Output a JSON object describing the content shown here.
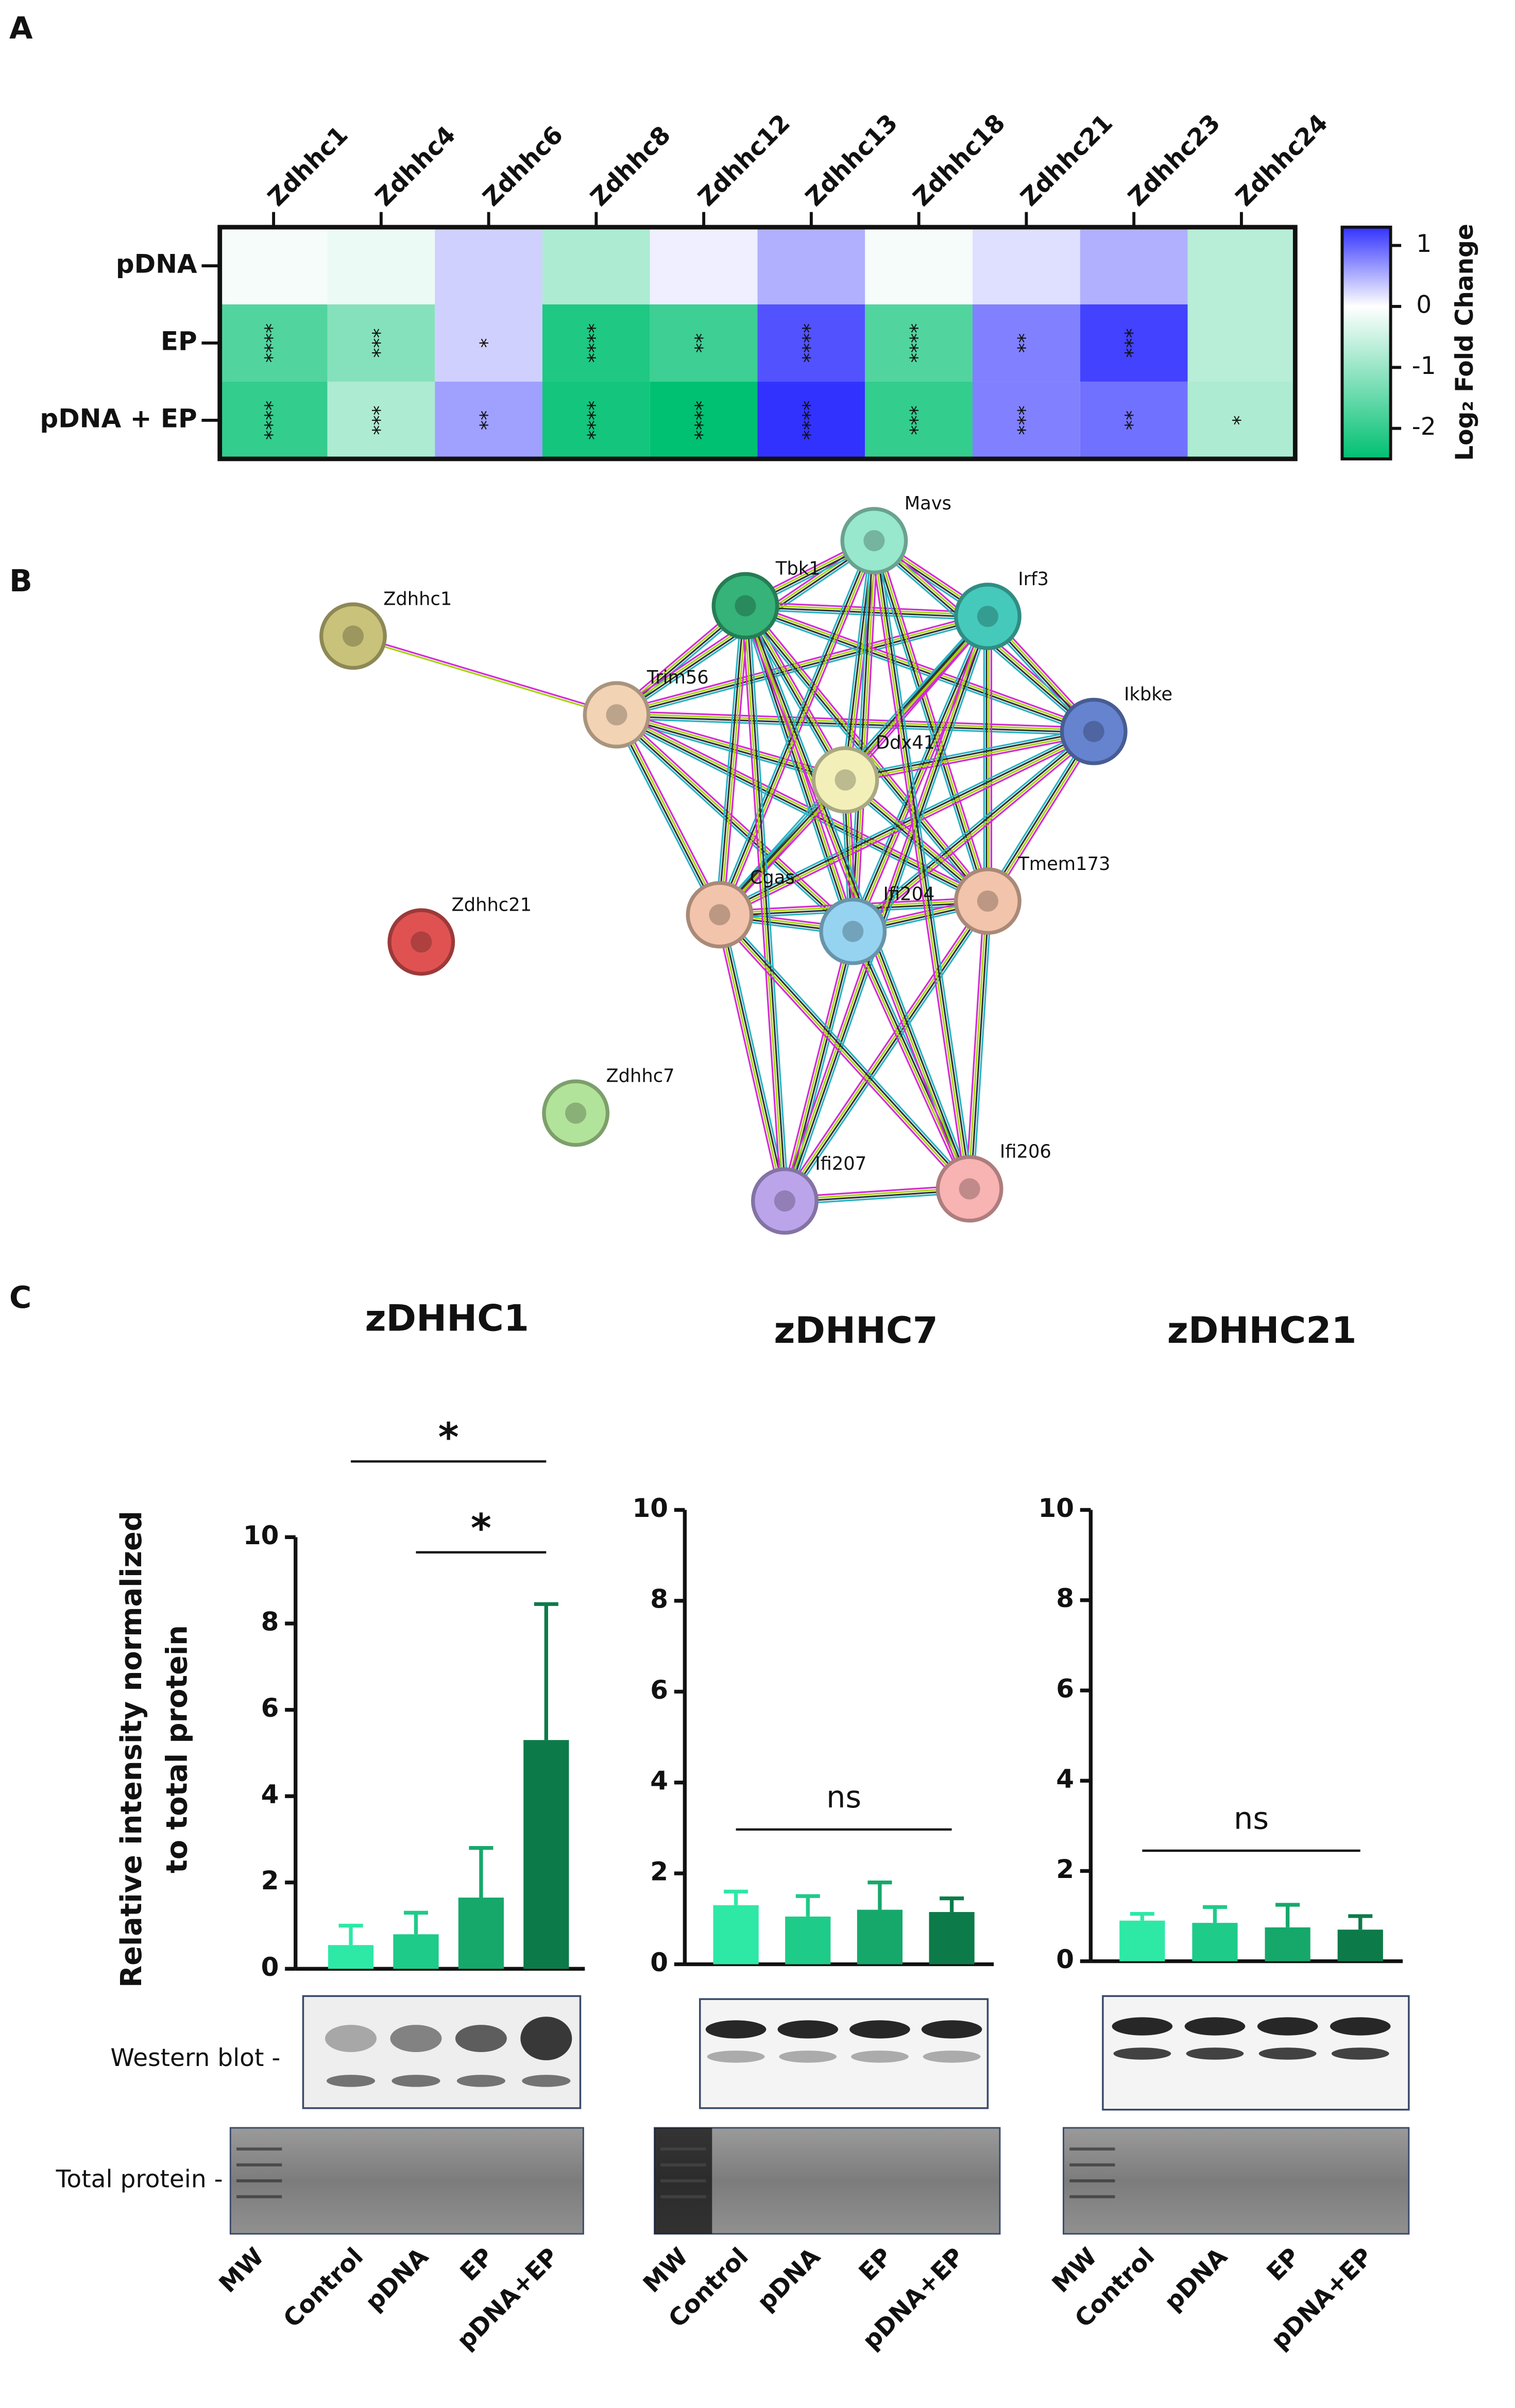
{
  "chart_data": [
    {
      "type": "heatmap",
      "panel": "A",
      "columns": [
        "Zdhhc1",
        "Zdhhc4",
        "Zdhhc6",
        "Zdhhc8",
        "Zdhhc12",
        "Zdhhc13",
        "Zdhhc18",
        "Zdhhc21",
        "Zdhhc23",
        "Zdhhc24"
      ],
      "rows": [
        "pDNA",
        "EP",
        "pDNA + EP"
      ],
      "values": [
        [
          -0.1,
          -0.2,
          0.3,
          -0.8,
          0.1,
          0.5,
          -0.1,
          0.2,
          0.5,
          -0.7
        ],
        [
          -1.7,
          -1.2,
          0.3,
          -2.2,
          -1.9,
          1.1,
          -1.7,
          0.8,
          1.2,
          -0.7
        ],
        [
          -2.0,
          -0.8,
          0.6,
          -2.3,
          -2.5,
          1.3,
          -2.0,
          0.8,
          0.9,
          -0.8
        ]
      ],
      "significance": [
        [
          null,
          null,
          null,
          null,
          null,
          null,
          null,
          null,
          null,
          null
        ],
        [
          "****",
          "***",
          "*",
          "****",
          "**",
          "****",
          "****",
          "**",
          "***",
          null
        ],
        [
          "****",
          "***",
          "**",
          "****",
          "****",
          "****",
          "***",
          "***",
          "**",
          "*"
        ]
      ],
      "clim": [
        -2.5,
        1.3
      ],
      "colormap": [
        "#00c072",
        "#ffffff",
        "#3232ff"
      ],
      "colorbar_ticks": [
        1,
        0,
        -1,
        -2
      ],
      "colorbar_label": "Log₂ Fold Change"
    },
    {
      "type": "network",
      "panel": "B",
      "nodes": [
        {
          "label": "Zdhhc1",
          "color": "#c9c27a"
        },
        {
          "label": "Zdhhc21",
          "color": "#e05252"
        },
        {
          "label": "Zdhhc7",
          "color": "#b2e39a"
        },
        {
          "label": "Trim56",
          "color": "#f2d3b4"
        },
        {
          "label": "Tbk1",
          "color": "#35b378"
        },
        {
          "label": "Mavs",
          "color": "#97e8cc"
        },
        {
          "label": "Irf3",
          "color": "#45c9bb"
        },
        {
          "label": "Ikbke",
          "color": "#6683d0"
        },
        {
          "label": "Ddx41",
          "color": "#f2f0b8"
        },
        {
          "label": "Cgas",
          "color": "#f2c4ab"
        },
        {
          "label": "Ifi204",
          "color": "#95d3f1"
        },
        {
          "label": "Tmem173",
          "color": "#f2c4ab"
        },
        {
          "label": "Ifi207",
          "color": "#bba4ea"
        },
        {
          "label": "Ifi206",
          "color": "#f8b3b3"
        }
      ],
      "edges": [
        [
          0,
          3
        ],
        [
          3,
          4
        ],
        [
          3,
          5
        ],
        [
          3,
          6
        ],
        [
          3,
          7
        ],
        [
          3,
          8
        ],
        [
          3,
          9
        ],
        [
          3,
          10
        ],
        [
          3,
          11
        ],
        [
          4,
          5
        ],
        [
          4,
          6
        ],
        [
          4,
          7
        ],
        [
          4,
          8
        ],
        [
          4,
          9
        ],
        [
          4,
          10
        ],
        [
          4,
          11
        ],
        [
          5,
          6
        ],
        [
          5,
          7
        ],
        [
          5,
          8
        ],
        [
          5,
          9
        ],
        [
          5,
          10
        ],
        [
          5,
          11
        ],
        [
          6,
          7
        ],
        [
          6,
          8
        ],
        [
          6,
          9
        ],
        [
          6,
          10
        ],
        [
          6,
          11
        ],
        [
          7,
          8
        ],
        [
          7,
          9
        ],
        [
          7,
          10
        ],
        [
          7,
          11
        ],
        [
          8,
          9
        ],
        [
          8,
          10
        ],
        [
          8,
          11
        ],
        [
          9,
          10
        ],
        [
          9,
          11
        ],
        [
          10,
          11
        ],
        [
          12,
          13
        ],
        [
          12,
          9
        ],
        [
          12,
          10
        ],
        [
          12,
          11
        ],
        [
          12,
          4
        ],
        [
          12,
          6
        ],
        [
          13,
          9
        ],
        [
          13,
          10
        ],
        [
          13,
          11
        ],
        [
          13,
          4
        ],
        [
          13,
          5
        ]
      ]
    },
    {
      "type": "bar",
      "panel": "C",
      "title": "zDHHC1",
      "ylabel": [
        "Relative intensity normalized",
        "to total protein"
      ],
      "blot_labels": [
        "Western blot -",
        "Total protein -"
      ],
      "categories": [
        "Control",
        "pDNA",
        "EP",
        "pDNA+EP"
      ],
      "lanes": [
        "MW",
        "Control",
        "pDNA",
        "EP",
        "pDNA+EP"
      ],
      "values": [
        0.55,
        0.8,
        1.65,
        5.3
      ],
      "errors": [
        0.45,
        0.5,
        1.15,
        3.15
      ],
      "colors": [
        "#2ee8a6",
        "#1ecb88",
        "#16a86b",
        "#0d7a49"
      ],
      "ylim": [
        0,
        10
      ],
      "yticks": [
        0,
        2,
        4,
        6,
        8,
        10
      ],
      "comparisons": [
        {
          "pair": [
            0,
            3
          ],
          "label": "*"
        },
        {
          "pair": [
            1,
            3
          ],
          "label": "*"
        }
      ]
    },
    {
      "type": "bar",
      "title": "zDHHC7",
      "categories": [
        "Control",
        "pDNA",
        "EP",
        "pDNA+EP"
      ],
      "lanes": [
        "MW",
        "Control",
        "pDNA",
        "EP",
        "pDNA+EP"
      ],
      "values": [
        1.3,
        1.05,
        1.2,
        1.15
      ],
      "errors": [
        0.3,
        0.45,
        0.6,
        0.3
      ],
      "colors": [
        "#2ee8a6",
        "#1ecb88",
        "#16a86b",
        "#0d7a49"
      ],
      "ylim": [
        0,
        10
      ],
      "yticks": [
        0,
        2,
        4,
        6,
        8,
        10
      ],
      "comparisons": [
        {
          "pair": [
            0,
            3
          ],
          "label": "ns"
        }
      ]
    },
    {
      "type": "bar",
      "title": "zDHHC21",
      "categories": [
        "Control",
        "pDNA",
        "EP",
        "pDNA+EP"
      ],
      "lanes": [
        "MW",
        "Control",
        "pDNA",
        "EP",
        "pDNA+EP"
      ],
      "values": [
        0.9,
        0.85,
        0.75,
        0.7
      ],
      "errors": [
        0.15,
        0.35,
        0.5,
        0.3
      ],
      "colors": [
        "#2ee8a6",
        "#1ecb88",
        "#16a86b",
        "#0d7a49"
      ],
      "ylim": [
        0,
        10
      ],
      "yticks": [
        0,
        2,
        4,
        6,
        8,
        10
      ],
      "comparisons": [
        {
          "pair": [
            0,
            3
          ],
          "label": "ns"
        }
      ]
    }
  ]
}
